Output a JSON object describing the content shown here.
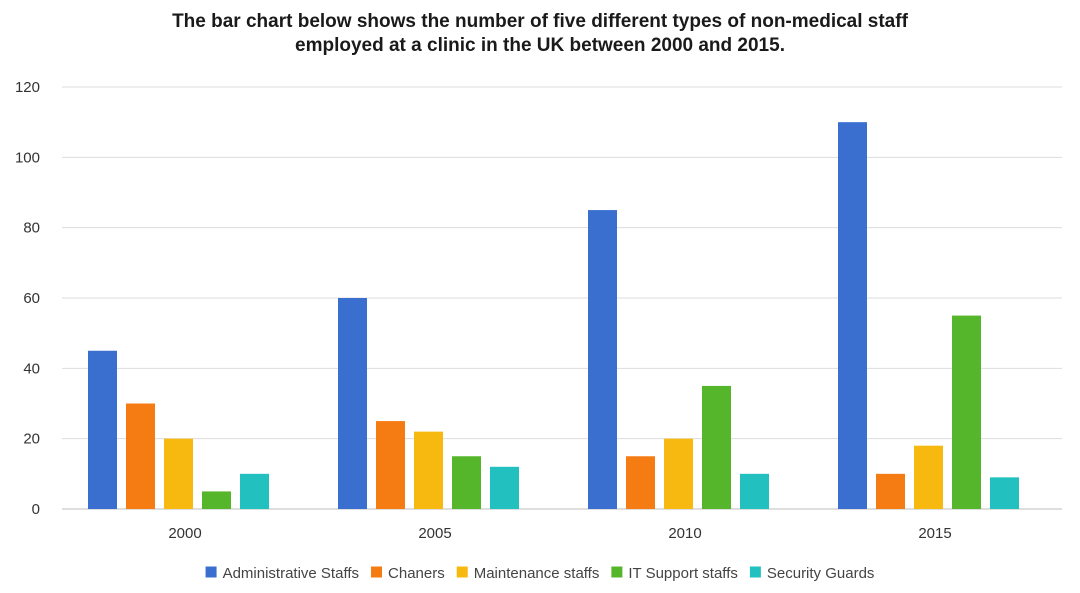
{
  "chart_data": {
    "type": "bar",
    "title_lines": [
      "The bar chart below shows the number of five different types of non-medical staff",
      "employed at a clinic in the UK between 2000 and 2015."
    ],
    "xlabel": "",
    "ylabel": "",
    "ylim": [
      0,
      120
    ],
    "yticks": [
      "0",
      "20",
      "40",
      "60",
      "80",
      "100",
      "120"
    ],
    "categories": [
      "2000",
      "2005",
      "2010",
      "2015"
    ],
    "legend_position": "bottom",
    "grid": true,
    "series": [
      {
        "name": "Administrative Staffs",
        "color": "#3a6fd0",
        "values": [
          45,
          60,
          85,
          110
        ]
      },
      {
        "name": "Chaners",
        "color": "#f57c12",
        "values": [
          30,
          25,
          15,
          10
        ]
      },
      {
        "name": "Maintenance staffs",
        "color": "#f7b90f",
        "values": [
          20,
          22,
          20,
          18
        ]
      },
      {
        "name": "IT Support staffs",
        "color": "#55b52b",
        "values": [
          5,
          15,
          35,
          55
        ]
      },
      {
        "name": "Security Guards",
        "color": "#22c1c0",
        "values": [
          10,
          12,
          10,
          9
        ]
      }
    ]
  }
}
